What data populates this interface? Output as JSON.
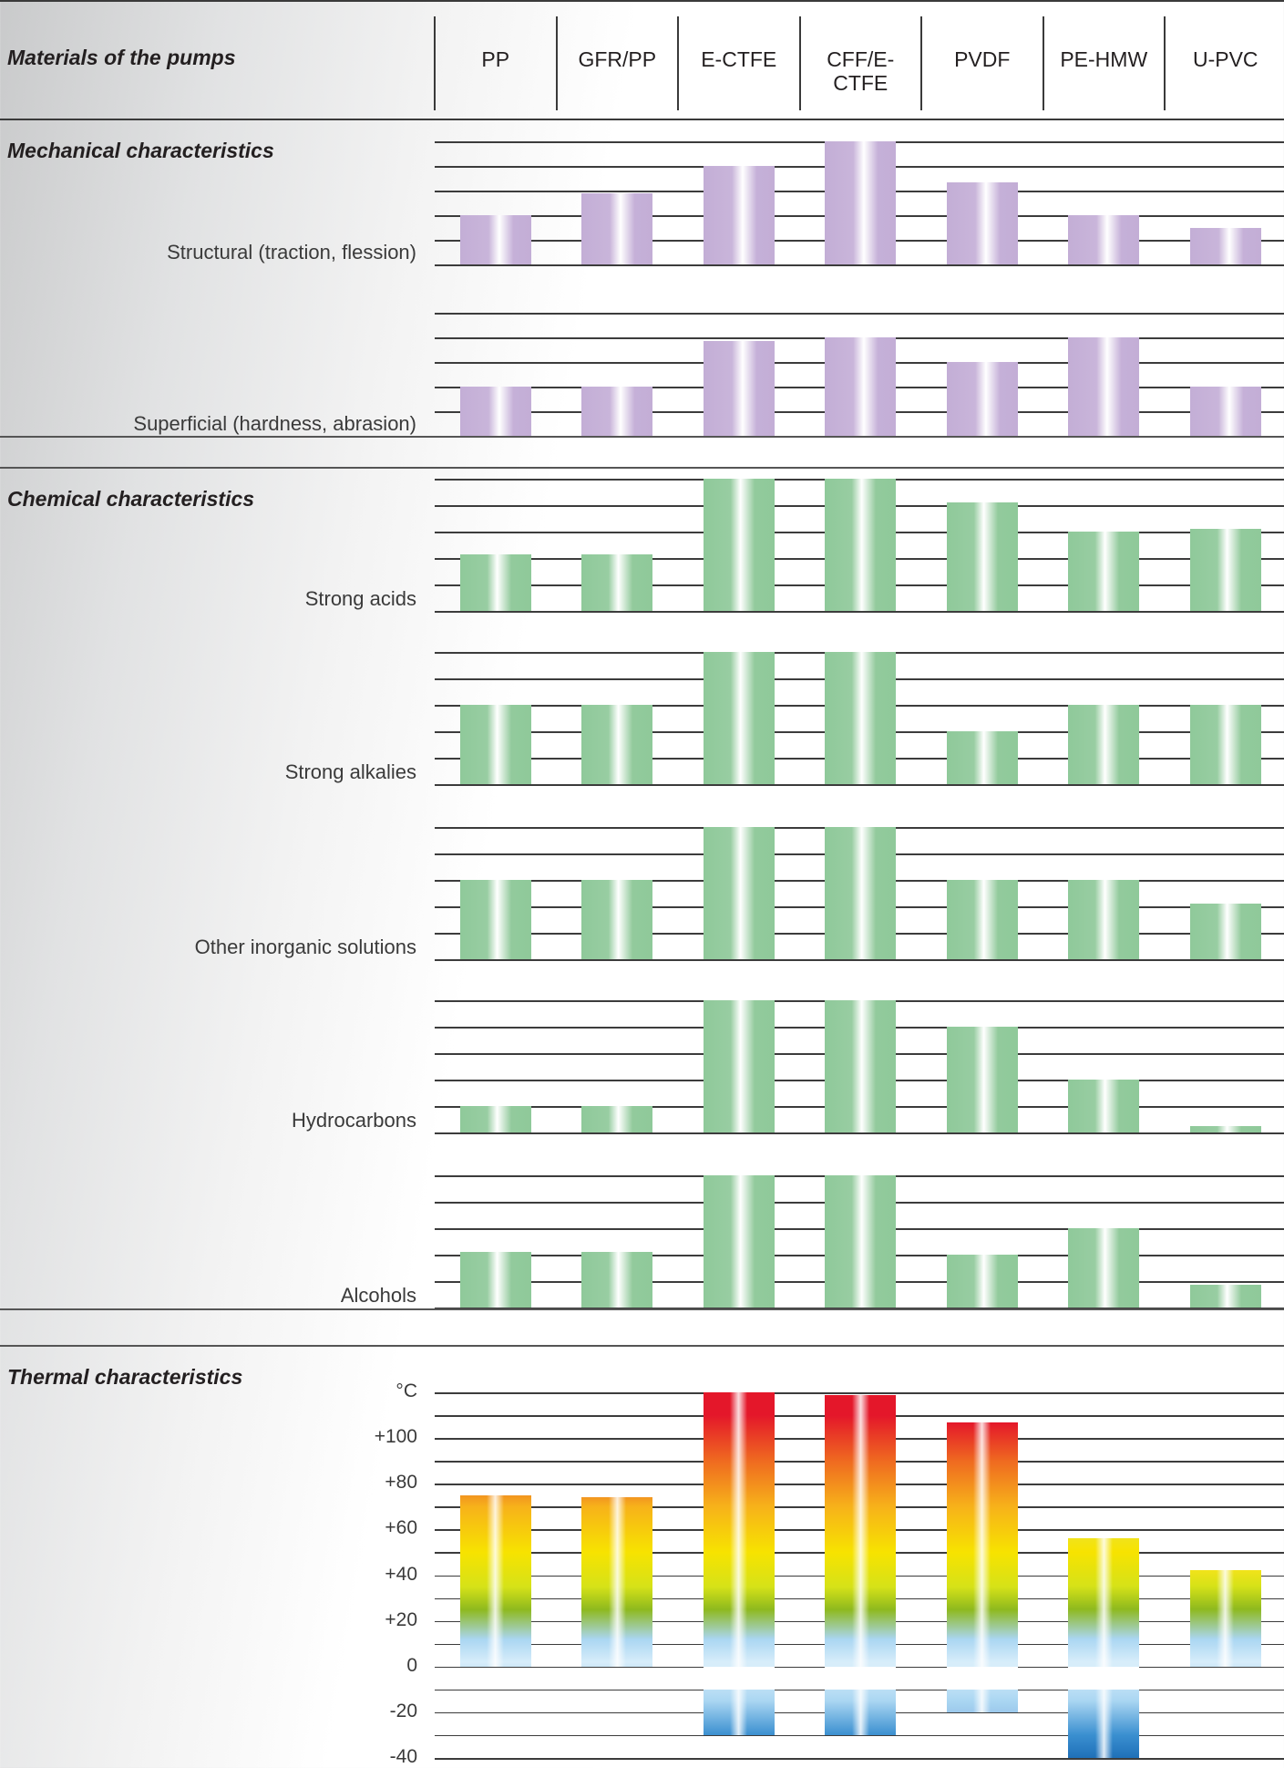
{
  "header": {
    "title": "Materials of the pumps",
    "columns": [
      "PP",
      "GFR/PP",
      "E-CTFE",
      "CFF/E-CTFE",
      "PVDF",
      "PE-HMW",
      "U-PVC"
    ]
  },
  "sections": {
    "mechanical": "Mechanical characteristics",
    "chemical": "Chemical characteristics",
    "thermal": "Thermal characteristics"
  },
  "chart_data": [
    {
      "type": "bar",
      "section": "Mechanical characteristics",
      "categories": [
        "PP",
        "GFR/PP",
        "E-CTFE",
        "CFF/E-CTFE",
        "PVDF",
        "PE-HMW",
        "U-PVC"
      ],
      "series": [
        {
          "name": "Structural (traction, flession)",
          "values": [
            4.0,
            5.8,
            8.0,
            10.0,
            6.7,
            4.0,
            3.0
          ],
          "color": "#c3aed6"
        },
        {
          "name": "Superficial (hardness, abrasion)",
          "values": [
            4.0,
            4.0,
            7.7,
            8.0,
            6.0,
            8.0,
            4.0
          ],
          "color": "#c3aed6"
        }
      ],
      "ylim": [
        0,
        10
      ]
    },
    {
      "type": "bar",
      "section": "Chemical characteristics",
      "categories": [
        "PP",
        "GFR/PP",
        "E-CTFE",
        "CFF/E-CTFE",
        "PVDF",
        "PE-HMW",
        "U-PVC"
      ],
      "series": [
        {
          "name": "Strong acids",
          "values": [
            4.3,
            4.3,
            10.0,
            10.0,
            8.2,
            6.0,
            6.2
          ],
          "color": "#8fc99a"
        },
        {
          "name": "Strong alkalies",
          "values": [
            6.0,
            6.0,
            10.0,
            10.0,
            4.0,
            6.0,
            6.0
          ],
          "color": "#8fc99a"
        },
        {
          "name": "Other inorganic solutions",
          "values": [
            6.0,
            6.0,
            10.0,
            10.0,
            6.0,
            6.0,
            4.2
          ],
          "color": "#8fc99a"
        },
        {
          "name": "Hydrocarbons",
          "values": [
            2.0,
            2.0,
            10.0,
            10.0,
            8.0,
            4.0,
            0.5
          ],
          "color": "#8fc99a"
        },
        {
          "name": "Alcohols",
          "values": [
            4.2,
            4.2,
            10.0,
            10.0,
            4.0,
            6.0,
            1.7
          ],
          "color": "#8fc99a"
        }
      ],
      "ylim": [
        0,
        10
      ]
    },
    {
      "type": "bar",
      "section": "Thermal characteristics",
      "ylabel": "°C",
      "categories": [
        "PP",
        "GFR/PP",
        "E-CTFE",
        "CFF/E-CTFE",
        "PVDF",
        "PE-HMW",
        "U-PVC"
      ],
      "series": [
        {
          "name": "max",
          "values": [
            75,
            74,
            120,
            119,
            107,
            56,
            42
          ]
        },
        {
          "name": "min",
          "values": [
            0,
            0,
            -30,
            -30,
            -20,
            -40,
            0
          ]
        }
      ],
      "yticks": [
        "°C",
        "+100",
        "+80",
        "+60",
        "+40",
        "+20",
        "0",
        "-20",
        "-40"
      ],
      "ylim": [
        -40,
        120
      ]
    }
  ]
}
